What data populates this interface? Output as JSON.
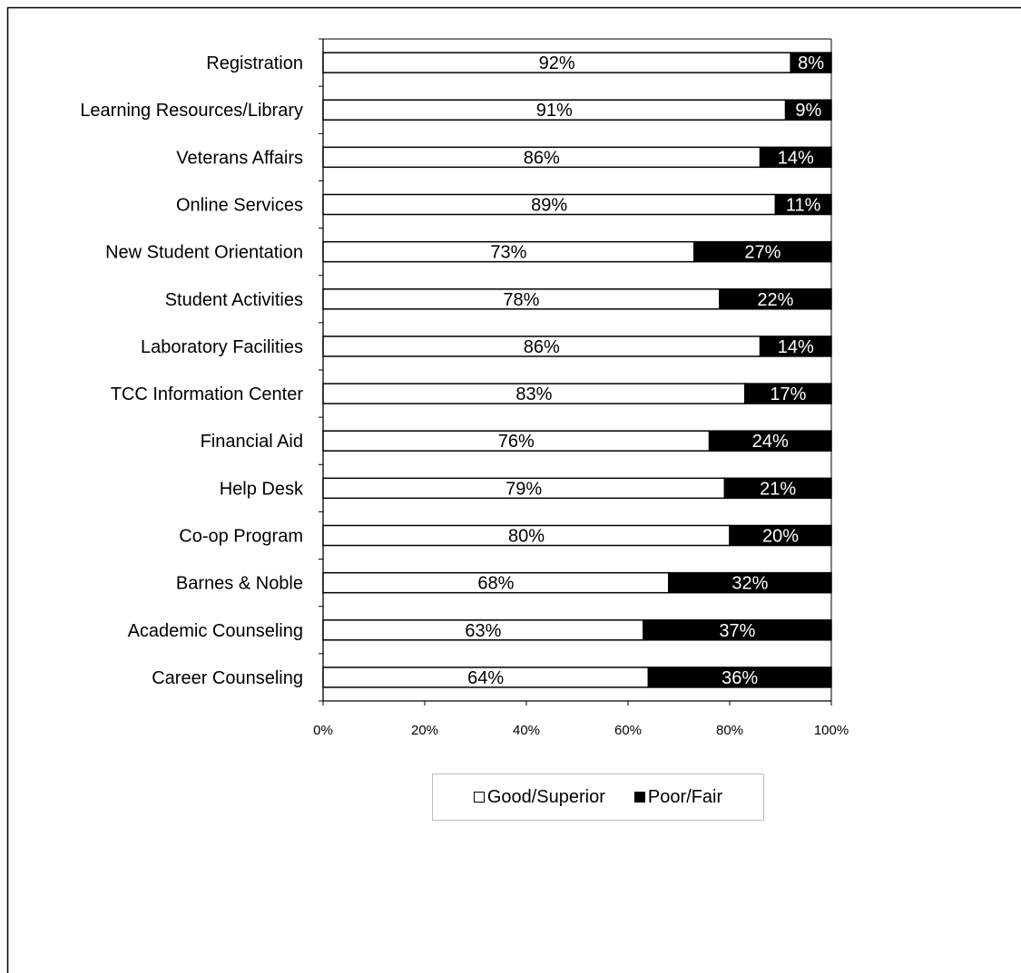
{
  "chart_data": {
    "type": "bar",
    "orientation": "horizontal",
    "stacked": true,
    "title": "",
    "xlabel": "",
    "ylabel": "",
    "xlim": [
      0,
      100
    ],
    "x_ticks": [
      "0%",
      "20%",
      "40%",
      "60%",
      "80%",
      "100%"
    ],
    "grid": false,
    "legend_position": "bottom",
    "categories": [
      "Registration",
      "Learning Resources/Library",
      "Veterans Affairs",
      "Online Services",
      "New Student Orientation",
      "Student Activities",
      "Laboratory Facilities",
      "TCC Information Center",
      "Financial Aid",
      "Help Desk",
      "Co-op Program",
      "Barnes & Noble",
      "Academic Counseling",
      "Career Counseling"
    ],
    "series": [
      {
        "name": "Good/Superior",
        "color": "#ffffff",
        "values": [
          92,
          91,
          86,
          89,
          73,
          78,
          86,
          83,
          76,
          79,
          80,
          68,
          63,
          64
        ],
        "labels": [
          "92%",
          "91%",
          "86%",
          "89%",
          "73%",
          "78%",
          "86%",
          "83%",
          "76%",
          "79%",
          "80%",
          "68%",
          "63%",
          "64%"
        ]
      },
      {
        "name": "Poor/Fair",
        "color": "#000000",
        "values": [
          8,
          9,
          14,
          11,
          27,
          22,
          14,
          17,
          24,
          21,
          20,
          32,
          37,
          36
        ],
        "labels": [
          "8%",
          "9%",
          "14%",
          "11%",
          "27%",
          "22%",
          "14%",
          "17%",
          "24%",
          "21%",
          "20%",
          "32%",
          "37%",
          "36%"
        ]
      }
    ]
  },
  "legend": {
    "good_label": "Good/Superior",
    "poor_label": "Poor/Fair"
  }
}
